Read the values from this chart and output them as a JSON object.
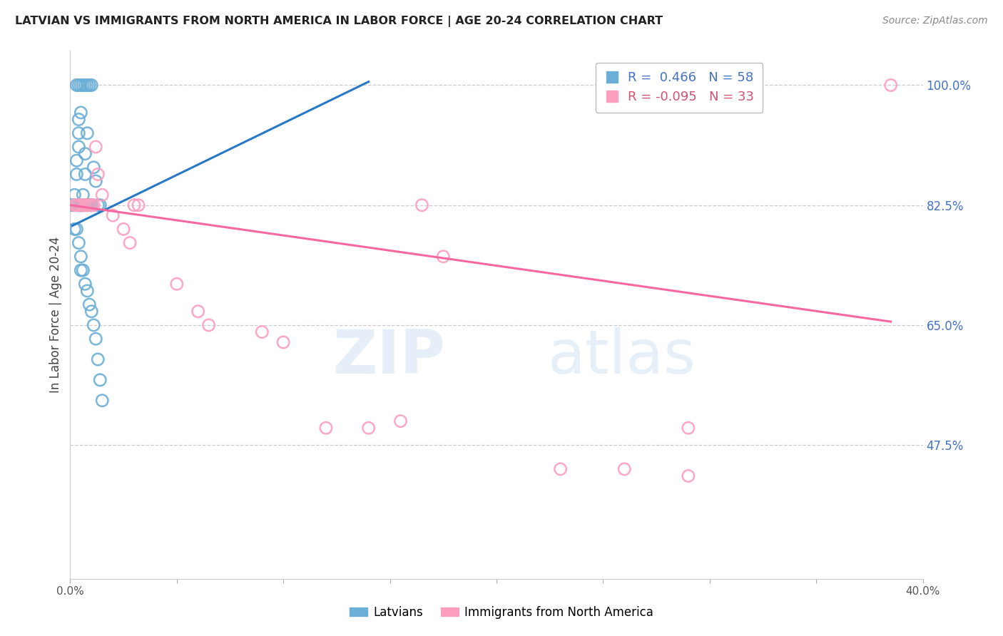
{
  "title": "LATVIAN VS IMMIGRANTS FROM NORTH AMERICA IN LABOR FORCE | AGE 20-24 CORRELATION CHART",
  "source": "Source: ZipAtlas.com",
  "ylabel": "In Labor Force | Age 20-24",
  "x_min": 0.0,
  "x_max": 0.4,
  "y_min": 0.28,
  "y_max": 1.05,
  "y_ticks": [
    0.475,
    0.65,
    0.825,
    1.0
  ],
  "y_tick_labels_right": [
    "47.5%",
    "65.0%",
    "82.5%",
    "100.0%"
  ],
  "blue_R": 0.466,
  "blue_N": 58,
  "pink_R": -0.095,
  "pink_N": 33,
  "blue_color": "#6baed6",
  "pink_color": "#fc9fbf",
  "blue_line_color": "#2878c8",
  "pink_line_color": "#f768a1",
  "watermark_zip": "ZIP",
  "watermark_atlas": "atlas",
  "legend_labels": [
    "Latvians",
    "Immigrants from North America"
  ],
  "blue_x": [
    0.001,
    0.002,
    0.002,
    0.003,
    0.003,
    0.004,
    0.004,
    0.004,
    0.005,
    0.005,
    0.005,
    0.005,
    0.005,
    0.006,
    0.006,
    0.006,
    0.007,
    0.007,
    0.008,
    0.008,
    0.009,
    0.01,
    0.01,
    0.011,
    0.012,
    0.013,
    0.014,
    0.003,
    0.004,
    0.005,
    0.006,
    0.007,
    0.008,
    0.009,
    0.01,
    0.002,
    0.003,
    0.004,
    0.004,
    0.005,
    0.005,
    0.006,
    0.007,
    0.008,
    0.009,
    0.01,
    0.011,
    0.012,
    0.013,
    0.014,
    0.015,
    0.003,
    0.004,
    0.005,
    0.006,
    0.007,
    0.008,
    0.01
  ],
  "blue_y": [
    0.825,
    0.825,
    0.84,
    0.87,
    0.89,
    0.91,
    0.93,
    0.95,
    0.96,
    0.825,
    0.825,
    0.825,
    0.825,
    0.825,
    0.825,
    0.84,
    0.87,
    0.9,
    0.93,
    0.825,
    0.825,
    0.825,
    0.825,
    0.88,
    0.86,
    0.825,
    0.825,
    1.0,
    1.0,
    1.0,
    1.0,
    1.0,
    1.0,
    1.0,
    1.0,
    0.79,
    0.79,
    0.77,
    0.825,
    0.75,
    0.73,
    0.73,
    0.71,
    0.7,
    0.68,
    0.67,
    0.65,
    0.63,
    0.6,
    0.57,
    0.54,
    0.825,
    0.825,
    0.825,
    0.825,
    0.825,
    0.825,
    0.825
  ],
  "pink_x": [
    0.002,
    0.003,
    0.004,
    0.005,
    0.006,
    0.007,
    0.008,
    0.009,
    0.01,
    0.011,
    0.012,
    0.013,
    0.015,
    0.02,
    0.025,
    0.028,
    0.03,
    0.032,
    0.05,
    0.06,
    0.065,
    0.09,
    0.1,
    0.12,
    0.14,
    0.155,
    0.165,
    0.23,
    0.26,
    0.29,
    0.175,
    0.29,
    0.385
  ],
  "pink_y": [
    0.825,
    0.825,
    0.825,
    0.825,
    0.825,
    0.825,
    0.825,
    0.825,
    0.825,
    0.825,
    0.91,
    0.87,
    0.84,
    0.81,
    0.79,
    0.77,
    0.825,
    0.825,
    0.71,
    0.67,
    0.65,
    0.64,
    0.625,
    0.5,
    0.5,
    0.51,
    0.825,
    0.44,
    0.44,
    0.43,
    0.75,
    0.5,
    1.0
  ],
  "blue_trend_x": [
    0.001,
    0.14
  ],
  "blue_trend_y": [
    0.795,
    1.005
  ],
  "pink_trend_x": [
    0.0,
    0.385
  ],
  "pink_trend_y": [
    0.825,
    0.655
  ]
}
